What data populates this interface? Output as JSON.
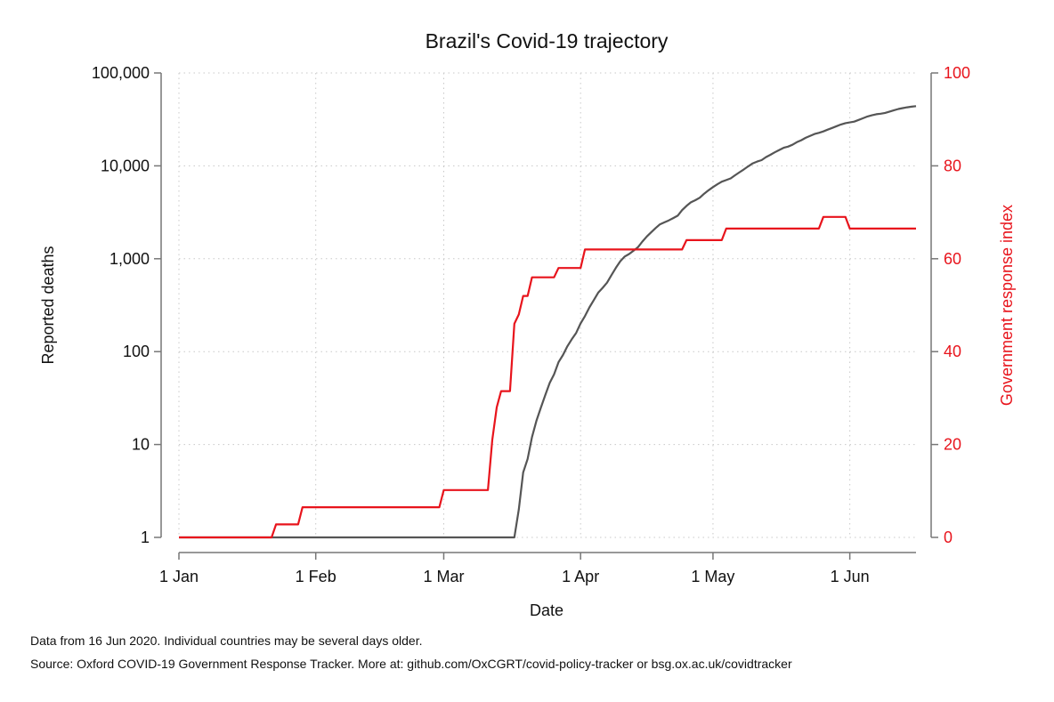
{
  "chart_data": {
    "type": "line",
    "title": "Brazil's Covid-19 trajectory",
    "xlabel": "Date",
    "ylabel_left": "Reported deaths",
    "ylabel_right": "Government response index",
    "x_ticks": [
      {
        "day": 0,
        "label": "1 Jan"
      },
      {
        "day": 31,
        "label": "1 Feb"
      },
      {
        "day": 60,
        "label": "1 Mar"
      },
      {
        "day": 91,
        "label": "1 Apr"
      },
      {
        "day": 121,
        "label": "1 May"
      },
      {
        "day": 152,
        "label": "1 Jun"
      }
    ],
    "y_left": {
      "scale": "log",
      "range": [
        1,
        100000
      ],
      "ticks": [
        {
          "value": 1,
          "label": "1"
        },
        {
          "value": 10,
          "label": "10"
        },
        {
          "value": 100,
          "label": "100"
        },
        {
          "value": 1000,
          "label": "1,000"
        },
        {
          "value": 10000,
          "label": "10,000"
        },
        {
          "value": 100000,
          "label": "100,000"
        }
      ]
    },
    "y_right": {
      "scale": "linear",
      "range": [
        0,
        100
      ],
      "ticks": [
        {
          "value": 0,
          "label": "0"
        },
        {
          "value": 20,
          "label": "20"
        },
        {
          "value": 40,
          "label": "40"
        },
        {
          "value": 60,
          "label": "60"
        },
        {
          "value": 80,
          "label": "80"
        },
        {
          "value": 100,
          "label": "100"
        }
      ]
    },
    "grid": true,
    "series": [
      {
        "axis": "left",
        "color": "#555555",
        "points": [
          [
            0,
            1
          ],
          [
            76,
            1
          ],
          [
            77,
            2
          ],
          [
            78,
            5
          ],
          [
            79,
            7
          ],
          [
            80,
            12
          ],
          [
            81,
            18
          ],
          [
            82,
            25
          ],
          [
            83,
            34
          ],
          [
            84,
            46
          ],
          [
            85,
            57
          ],
          [
            86,
            77
          ],
          [
            87,
            92
          ],
          [
            88,
            114
          ],
          [
            89,
            136
          ],
          [
            90,
            159
          ],
          [
            91,
            201
          ],
          [
            92,
            241
          ],
          [
            93,
            299
          ],
          [
            94,
            359
          ],
          [
            95,
            432
          ],
          [
            96,
            486
          ],
          [
            97,
            553
          ],
          [
            98,
            667
          ],
          [
            99,
            800
          ],
          [
            100,
            941
          ],
          [
            101,
            1056
          ],
          [
            102,
            1124
          ],
          [
            103,
            1223
          ],
          [
            104,
            1328
          ],
          [
            105,
            1532
          ],
          [
            106,
            1736
          ],
          [
            107,
            1924
          ],
          [
            108,
            2141
          ],
          [
            109,
            2347
          ],
          [
            110,
            2462
          ],
          [
            111,
            2587
          ],
          [
            112,
            2741
          ],
          [
            113,
            2906
          ],
          [
            114,
            3331
          ],
          [
            115,
            3704
          ],
          [
            116,
            4045
          ],
          [
            117,
            4271
          ],
          [
            118,
            4543
          ],
          [
            119,
            5017
          ],
          [
            120,
            5466
          ],
          [
            121,
            5901
          ],
          [
            122,
            6329
          ],
          [
            123,
            6750
          ],
          [
            124,
            7025
          ],
          [
            125,
            7321
          ],
          [
            126,
            7921
          ],
          [
            127,
            8536
          ],
          [
            128,
            9146
          ],
          [
            129,
            9897
          ],
          [
            130,
            10627
          ],
          [
            131,
            11123
          ],
          [
            132,
            11519
          ],
          [
            133,
            12400
          ],
          [
            134,
            13149
          ],
          [
            135,
            13993
          ],
          [
            136,
            14817
          ],
          [
            137,
            15633
          ],
          [
            138,
            16118
          ],
          [
            139,
            16853
          ],
          [
            140,
            17983
          ],
          [
            141,
            18859
          ],
          [
            142,
            20047
          ],
          [
            143,
            21048
          ],
          [
            144,
            22013
          ],
          [
            145,
            22666
          ],
          [
            146,
            23473
          ],
          [
            147,
            24512
          ],
          [
            148,
            25598
          ],
          [
            149,
            26754
          ],
          [
            150,
            27878
          ],
          [
            151,
            28834
          ],
          [
            152,
            29314
          ],
          [
            153,
            29937
          ],
          [
            154,
            31199
          ],
          [
            155,
            32548
          ],
          [
            156,
            34021
          ],
          [
            157,
            35026
          ],
          [
            158,
            35930
          ],
          [
            159,
            36455
          ],
          [
            160,
            37134
          ],
          [
            161,
            38406
          ],
          [
            162,
            39680
          ],
          [
            163,
            40919
          ],
          [
            164,
            41828
          ],
          [
            165,
            42720
          ],
          [
            166,
            43332
          ],
          [
            167,
            43959
          ]
        ]
      },
      {
        "axis": "right",
        "color": "#e8141c",
        "points": [
          [
            0,
            0
          ],
          [
            21,
            0
          ],
          [
            22,
            2.8
          ],
          [
            27,
            2.8
          ],
          [
            28,
            6.5
          ],
          [
            59,
            6.5
          ],
          [
            60,
            10.2
          ],
          [
            70,
            10.2
          ],
          [
            71,
            21
          ],
          [
            72,
            28
          ],
          [
            73,
            31.5
          ],
          [
            75,
            31.5
          ],
          [
            76,
            46
          ],
          [
            77,
            48
          ],
          [
            78,
            52
          ],
          [
            79,
            52
          ],
          [
            80,
            56
          ],
          [
            85,
            56
          ],
          [
            86,
            58
          ],
          [
            91,
            58
          ],
          [
            92,
            62
          ],
          [
            114,
            62
          ],
          [
            115,
            64
          ],
          [
            123,
            64
          ],
          [
            124,
            66.5
          ],
          [
            145,
            66.5
          ],
          [
            146,
            69
          ],
          [
            151,
            69
          ],
          [
            152,
            66.5
          ],
          [
            167,
            66.5
          ]
        ]
      }
    ]
  },
  "notes": {
    "line1": "Data from 16 Jun 2020. Individual countries may be several days older.",
    "line2": "Source: Oxford COVID-19 Government Response Tracker. More at: github.com/OxCGRT/covid-policy-tracker or bsg.ox.ac.uk/covidtracker"
  }
}
